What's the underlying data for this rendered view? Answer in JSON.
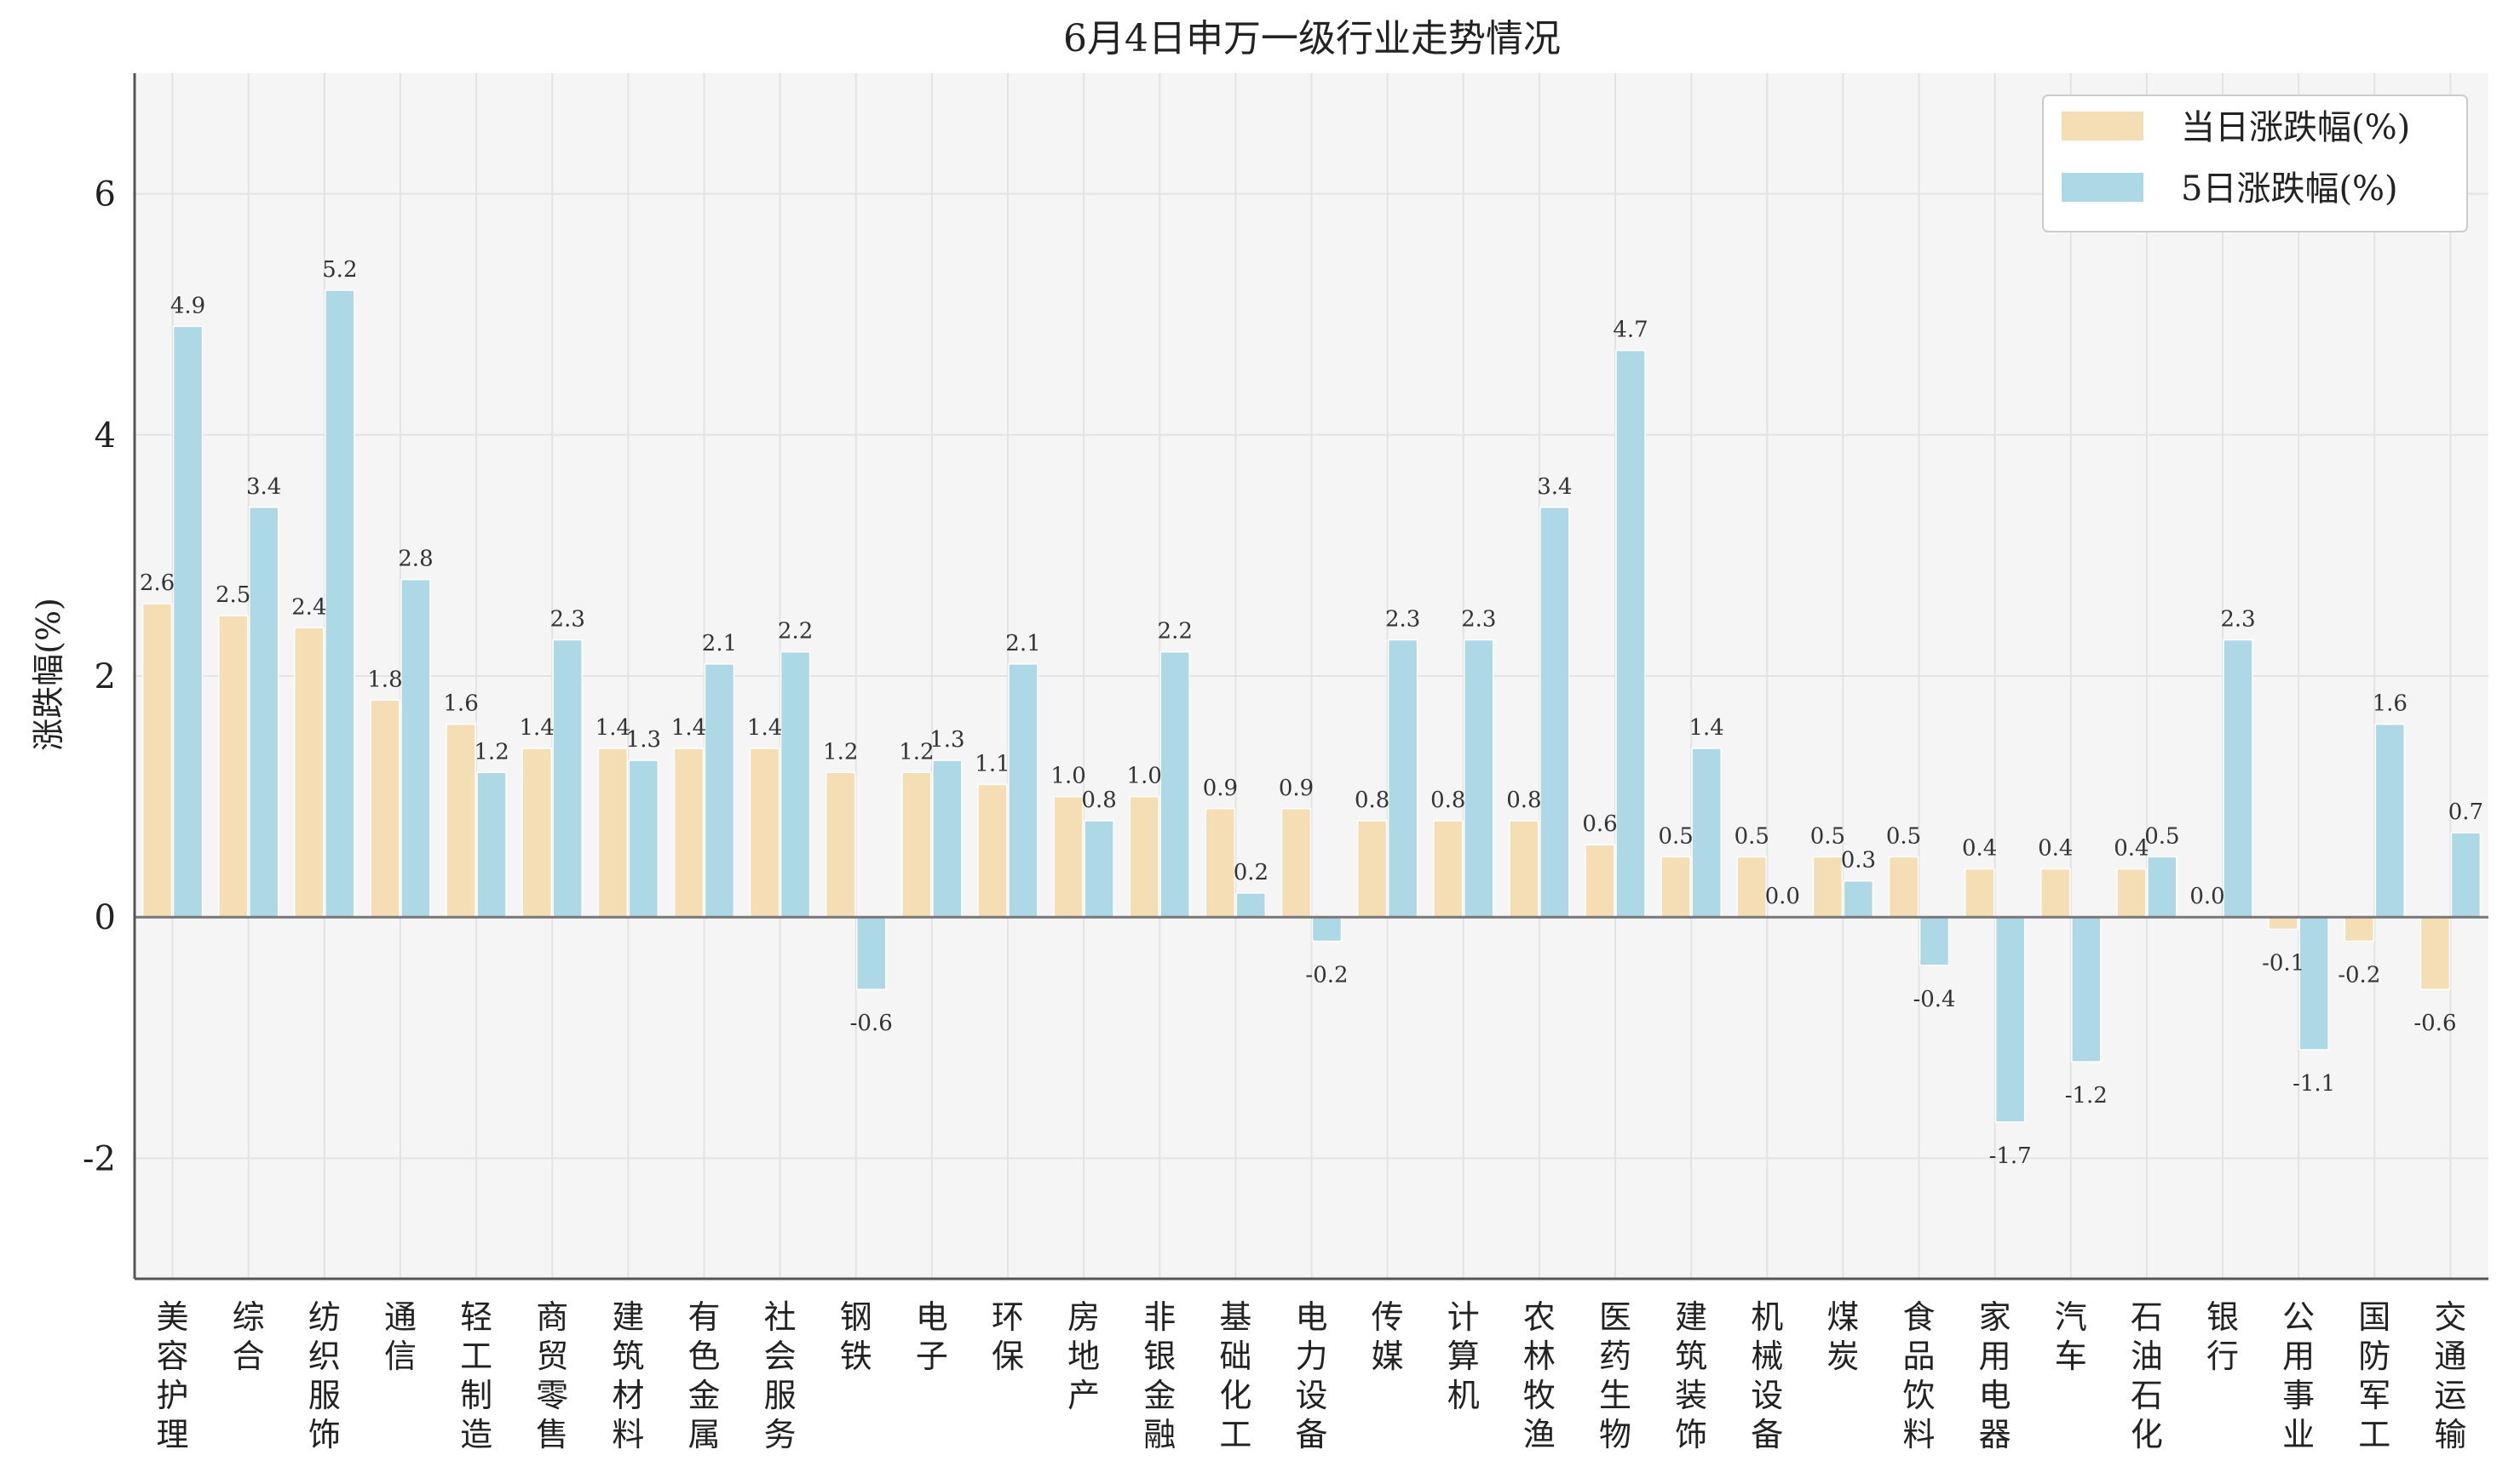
{
  "chart_data": {
    "type": "bar",
    "title": "6月4日申万一级行业走势情况",
    "xlabel": "",
    "ylabel": "涨跌幅(%)",
    "ylim": [
      -3,
      7
    ],
    "yticks": [
      -2,
      0,
      2,
      4,
      6
    ],
    "grid": true,
    "legend_position": "top-right",
    "categories": [
      "美容护理",
      "综合",
      "纺织服饰",
      "通信",
      "轻工制造",
      "商贸零售",
      "建筑材料",
      "有色金属",
      "社会服务",
      "钢铁",
      "电子",
      "环保",
      "房地产",
      "非银金融",
      "基础化工",
      "电力设备",
      "传媒",
      "计算机",
      "农林牧渔",
      "医药生物",
      "建筑装饰",
      "机械设备",
      "煤炭",
      "食品饮料",
      "家用电器",
      "汽车",
      "石油石化",
      "银行",
      "公用事业",
      "国防军工",
      "交通运输"
    ],
    "series": [
      {
        "name": "当日涨跌幅(%)",
        "color": "#F5DEB3",
        "values": [
          2.6,
          2.5,
          2.4,
          1.8,
          1.6,
          1.4,
          1.4,
          1.4,
          1.4,
          1.2,
          1.2,
          1.1,
          1.0,
          1.0,
          0.9,
          0.9,
          0.8,
          0.8,
          0.8,
          0.6,
          0.5,
          0.5,
          0.5,
          0.5,
          0.4,
          0.4,
          0.4,
          0.0,
          -0.1,
          -0.2,
          -0.6
        ]
      },
      {
        "name": "5日涨跌幅(%)",
        "color": "#ADD8E6",
        "values": [
          4.9,
          3.4,
          5.2,
          2.8,
          1.2,
          2.3,
          1.3,
          2.1,
          2.2,
          -0.6,
          1.3,
          2.1,
          0.8,
          2.2,
          0.2,
          -0.2,
          2.3,
          2.3,
          3.4,
          4.7,
          1.4,
          0.0,
          0.3,
          -0.4,
          -1.7,
          -1.2,
          0.5,
          2.3,
          -1.1,
          1.6,
          0.7
        ]
      }
    ]
  },
  "colors": {
    "plot_bg": "#F5F5F5",
    "grid": "#E3E3E3",
    "axis": "#555555",
    "zero_line": "#777777"
  }
}
